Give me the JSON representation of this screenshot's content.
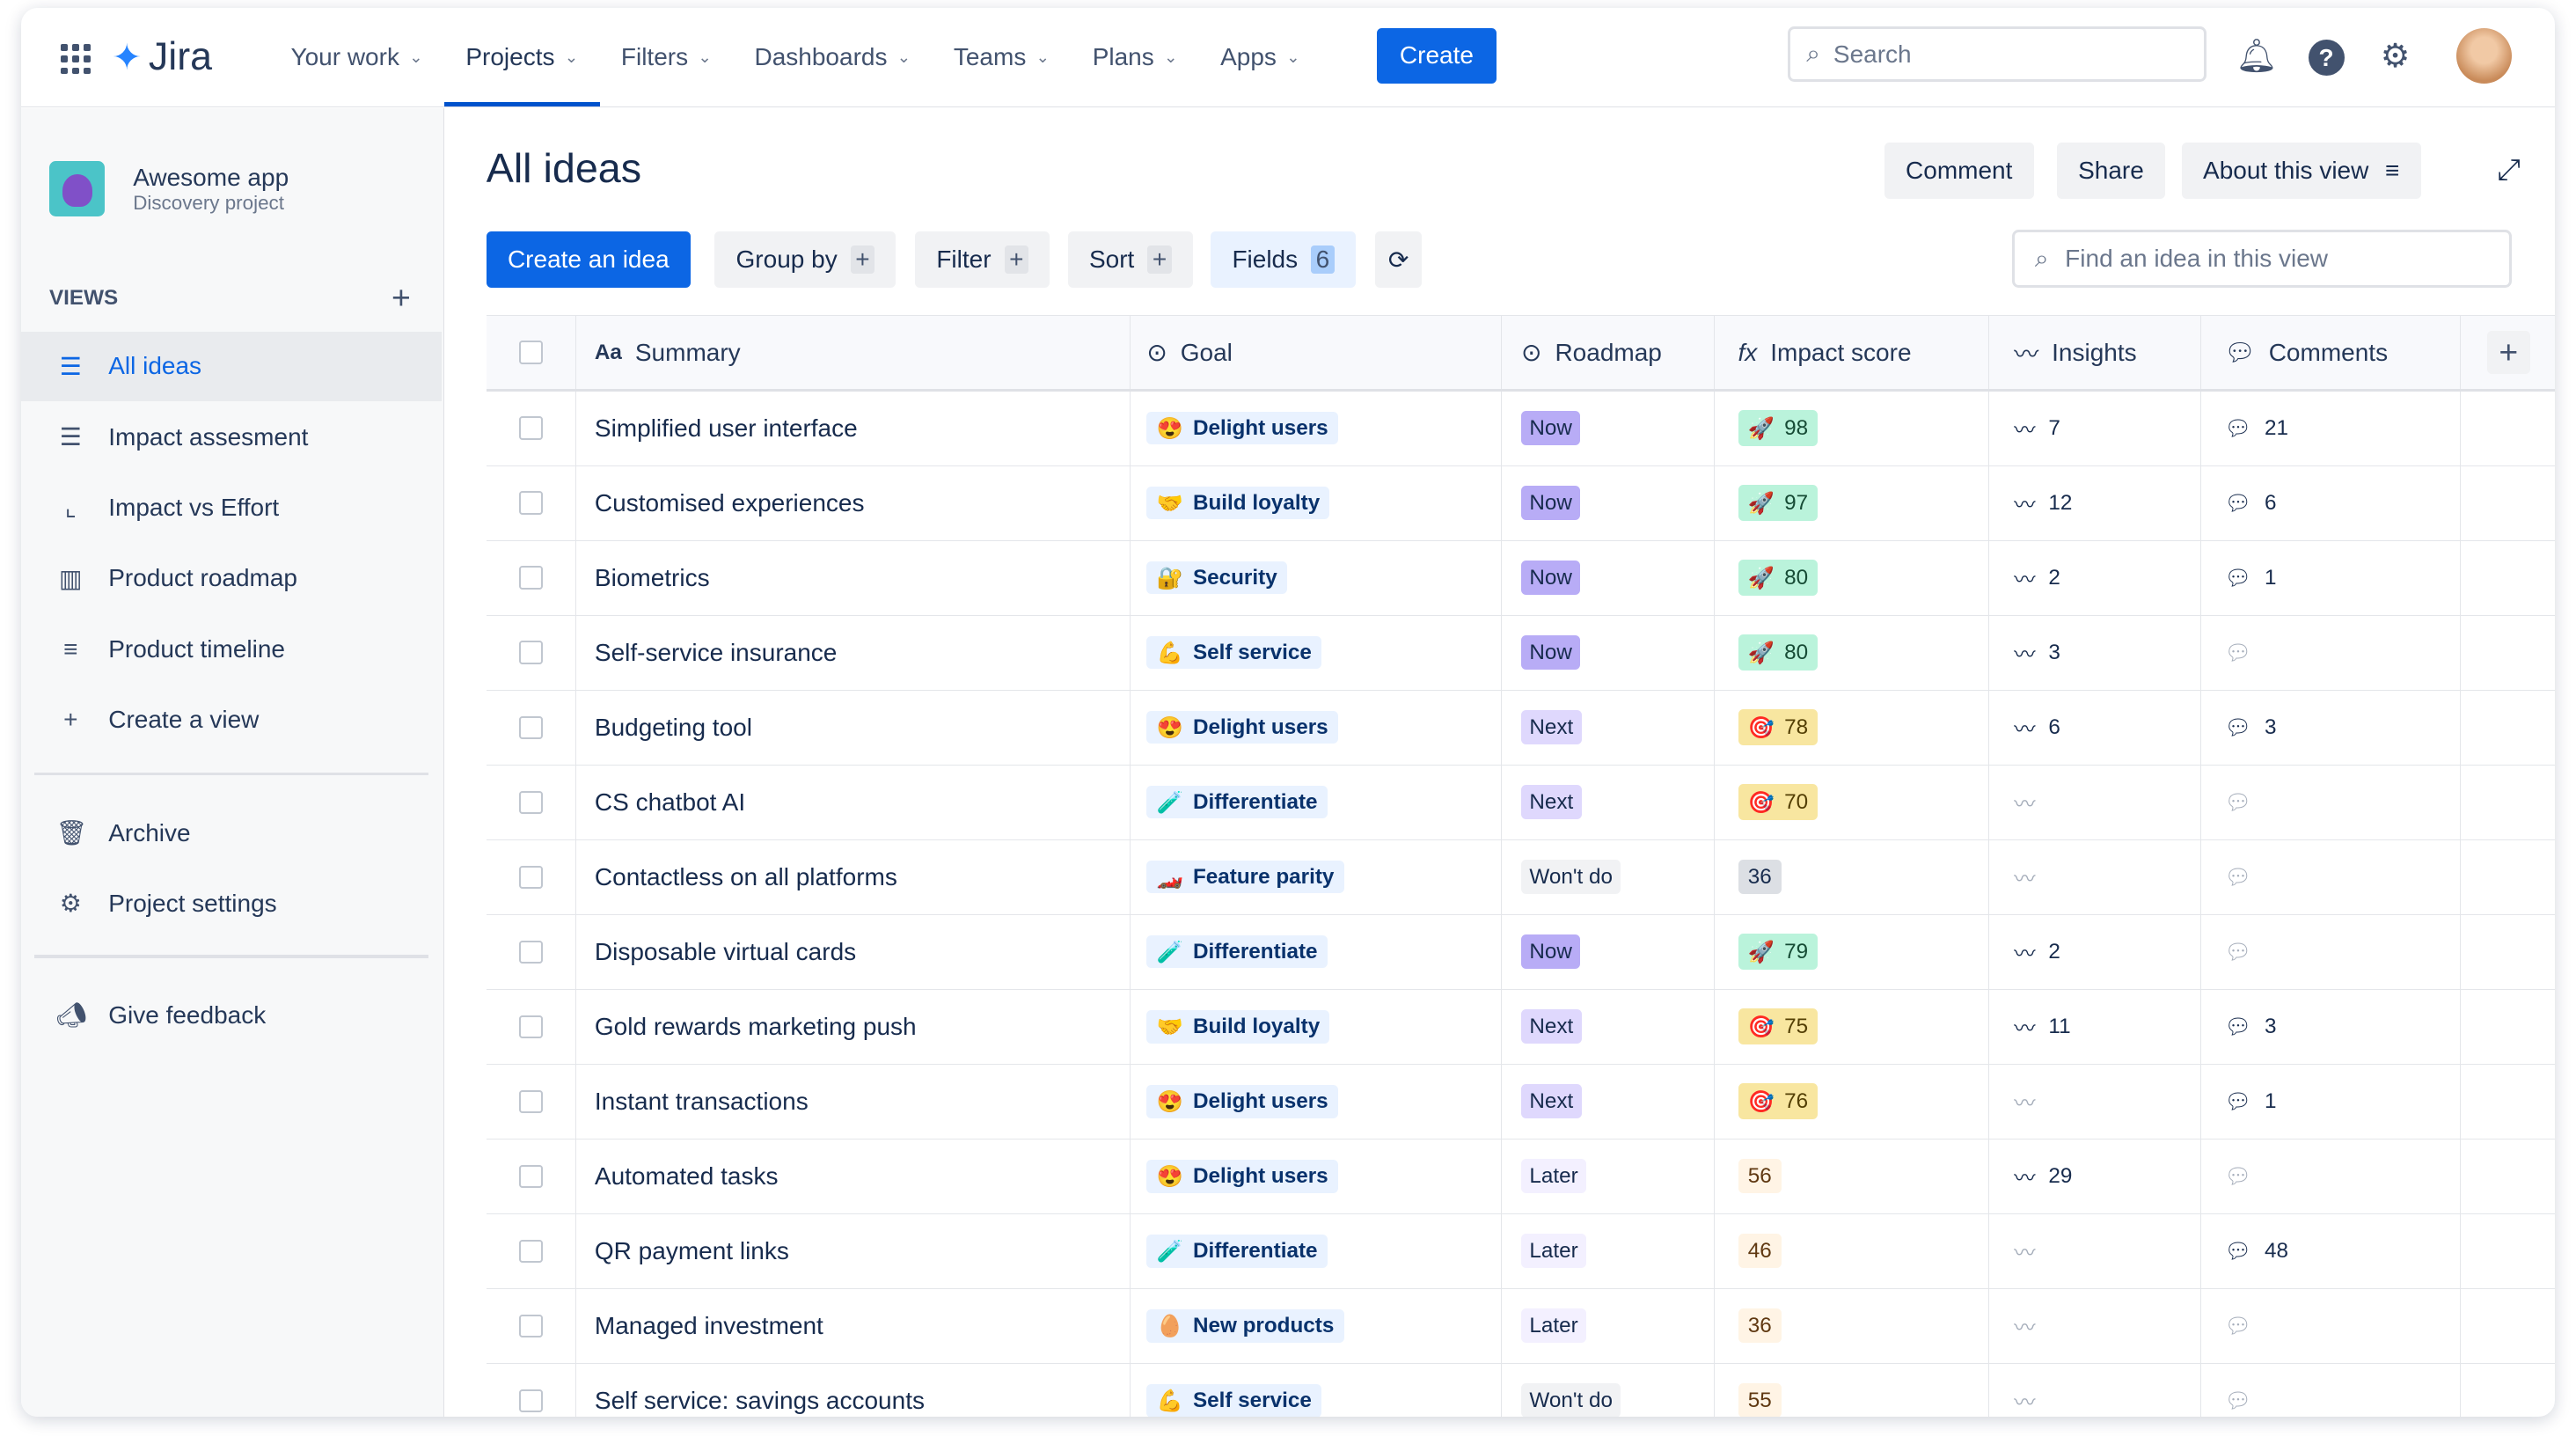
{
  "nav": {
    "logo": "Jira",
    "items": [
      {
        "label": "Your work"
      },
      {
        "label": "Projects",
        "selected": true
      },
      {
        "label": "Filters"
      },
      {
        "label": "Dashboards"
      },
      {
        "label": "Teams"
      },
      {
        "label": "Plans"
      },
      {
        "label": "Apps"
      }
    ],
    "create": "Create",
    "search_placeholder": "Search"
  },
  "project": {
    "name": "Awesome app",
    "type": "Discovery project"
  },
  "sidebar": {
    "views_label": "VIEWS",
    "items": [
      {
        "label": "All ideas",
        "icon": "list-icon",
        "selected": true
      },
      {
        "label": "Impact assesment",
        "icon": "list-icon"
      },
      {
        "label": "Impact vs Effort",
        "icon": "scatter-chart-icon"
      },
      {
        "label": "Product roadmap",
        "icon": "board-icon"
      },
      {
        "label": "Product timeline",
        "icon": "timeline-icon"
      },
      {
        "label": "Create a view",
        "icon": "plus-icon"
      }
    ],
    "archive": "Archive",
    "settings": "Project settings",
    "feedback": "Give feedback"
  },
  "page": {
    "title": "All ideas",
    "comment": "Comment",
    "share": "Share",
    "about": "About this view"
  },
  "toolbar": {
    "create_idea": "Create an idea",
    "group_by": "Group by",
    "filter": "Filter",
    "sort": "Sort",
    "fields": "Fields",
    "fields_count": "6",
    "find_placeholder": "Find an idea in this view"
  },
  "columns": {
    "summary": "Summary",
    "goal": "Goal",
    "roadmap": "Roadmap",
    "impact": "Impact score",
    "insights": "Insights",
    "comments": "Comments"
  },
  "colors": {
    "accent": "#0c66e4",
    "now": "#b8acf6",
    "next": "#dfd8fd",
    "later": "#f3f0ff",
    "wontdo": "#f1f2f4",
    "score_high": "#baf3db",
    "score_mid": "#f8e6a0",
    "score_low": "#fff4e5",
    "score_grey": "#dcdfe4"
  },
  "rows": [
    {
      "summary": "Simplified user interface",
      "goal": "Delight users",
      "emoji": "😍",
      "roadmap": "Now",
      "score": "98",
      "level": "high",
      "insights": "7",
      "comments": "21"
    },
    {
      "summary": "Customised experiences",
      "goal": "Build loyalty",
      "emoji": "🤝",
      "roadmap": "Now",
      "score": "97",
      "level": "high",
      "insights": "12",
      "comments": "6"
    },
    {
      "summary": "Biometrics",
      "goal": "Security",
      "emoji": "🔐",
      "roadmap": "Now",
      "score": "80",
      "level": "high",
      "insights": "2",
      "comments": "1"
    },
    {
      "summary": "Self-service insurance",
      "goal": "Self service",
      "emoji": "💪",
      "roadmap": "Now",
      "score": "80",
      "level": "high",
      "insights": "3",
      "comments": ""
    },
    {
      "summary": "Budgeting tool",
      "goal": "Delight users",
      "emoji": "😍",
      "roadmap": "Next",
      "score": "78",
      "level": "mid",
      "insights": "6",
      "comments": "3"
    },
    {
      "summary": "CS chatbot AI",
      "goal": "Differentiate",
      "emoji": "🧪",
      "roadmap": "Next",
      "score": "70",
      "level": "mid",
      "insights": "",
      "comments": ""
    },
    {
      "summary": "Contactless on all platforms",
      "goal": "Feature parity",
      "emoji": "🏎️",
      "roadmap": "Won't do",
      "score": "36",
      "level": "grey",
      "insights": "",
      "comments": ""
    },
    {
      "summary": "Disposable virtual cards",
      "goal": "Differentiate",
      "emoji": "🧪",
      "roadmap": "Now",
      "score": "79",
      "level": "high",
      "insights": "2",
      "comments": ""
    },
    {
      "summary": "Gold rewards marketing push",
      "goal": "Build loyalty",
      "emoji": "🤝",
      "roadmap": "Next",
      "score": "75",
      "level": "mid",
      "insights": "11",
      "comments": "3"
    },
    {
      "summary": "Instant transactions",
      "goal": "Delight users",
      "emoji": "😍",
      "roadmap": "Next",
      "score": "76",
      "level": "mid",
      "insights": "",
      "comments": "1"
    },
    {
      "summary": "Automated tasks",
      "goal": "Delight users",
      "emoji": "😍",
      "roadmap": "Later",
      "score": "56",
      "level": "low",
      "insights": "29",
      "comments": ""
    },
    {
      "summary": "QR payment links",
      "goal": "Differentiate",
      "emoji": "🧪",
      "roadmap": "Later",
      "score": "46",
      "level": "low",
      "insights": "",
      "comments": "48"
    },
    {
      "summary": "Managed investment",
      "goal": "New products",
      "emoji": "🥚",
      "roadmap": "Later",
      "score": "36",
      "level": "low",
      "insights": "",
      "comments": ""
    },
    {
      "summary": "Self service: savings accounts",
      "goal": "Self service",
      "emoji": "💪",
      "roadmap": "Won't do",
      "score": "55",
      "level": "low",
      "insights": "",
      "comments": ""
    }
  ]
}
